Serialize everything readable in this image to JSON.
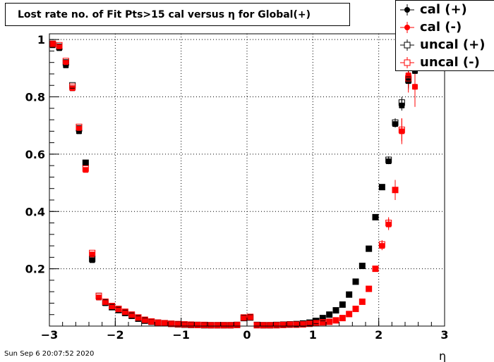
{
  "title": "Lost rate no. of Fit Pts>15 cal versus η for Global(+)",
  "timestamp": "Sun Sep  6 20:07:52 2020",
  "chart_data": {
    "type": "scatter",
    "title": "Lost rate no. of Fit Pts>15 cal versus η for Global(+)",
    "xlabel": "η",
    "ylabel": "",
    "xlim": [
      -3,
      3
    ],
    "ylim": [
      0,
      1.02
    ],
    "x_ticks": [
      -3,
      -2,
      -1,
      0,
      1,
      2,
      3
    ],
    "x_tick_labels": [
      "−3",
      "−2",
      "−1",
      "0",
      "1",
      "2",
      "3"
    ],
    "y_ticks": [
      0.2,
      0.4,
      0.6,
      0.8,
      1
    ],
    "y_tick_labels": [
      "0.2",
      "0.4",
      "0.6",
      "0.8",
      "1"
    ],
    "grid": true,
    "legend_position": "top-right",
    "series": [
      {
        "name": "cal (+)",
        "color": "#000000",
        "marker": "filled-circle",
        "x": [
          -2.95,
          -2.85,
          -2.75,
          -2.65,
          -2.55,
          -2.45,
          -2.35,
          -2.25,
          -2.15,
          -2.05,
          -1.95,
          -1.85,
          -1.75,
          -1.65,
          -1.55,
          -1.45,
          -1.35,
          -1.25,
          -1.15,
          -1.05,
          -0.95,
          -0.85,
          -0.75,
          -0.65,
          -0.55,
          -0.45,
          -0.35,
          -0.25,
          -0.15,
          -0.05,
          0.05,
          0.15,
          0.25,
          0.35,
          0.45,
          0.55,
          0.65,
          0.75,
          0.85,
          0.95,
          1.05,
          1.15,
          1.25,
          1.35,
          1.45,
          1.55,
          1.65,
          1.75,
          1.85,
          1.95,
          2.05,
          2.15,
          2.25,
          2.35,
          2.45,
          2.55
        ],
        "y": [
          0.98,
          0.97,
          0.91,
          0.83,
          0.68,
          0.57,
          0.23,
          0.1,
          0.08,
          0.065,
          0.055,
          0.045,
          0.035,
          0.025,
          0.018,
          0.014,
          0.011,
          0.009,
          0.007,
          0.006,
          0.005,
          0.004,
          0.004,
          0.003,
          0.003,
          0.003,
          0.003,
          0.003,
          0.004,
          0.028,
          0.03,
          0.004,
          0.003,
          0.003,
          0.004,
          0.005,
          0.006,
          0.007,
          0.009,
          0.012,
          0.018,
          0.028,
          0.04,
          0.055,
          0.075,
          0.11,
          0.155,
          0.21,
          0.27,
          0.38,
          0.485,
          0.575,
          0.705,
          0.77,
          0.855,
          0.89
        ],
        "err": [
          0,
          0,
          0,
          0,
          0,
          0,
          0,
          0,
          0,
          0,
          0,
          0,
          0,
          0,
          0,
          0,
          0,
          0,
          0,
          0,
          0,
          0,
          0,
          0,
          0,
          0,
          0,
          0,
          0,
          0,
          0,
          0,
          0,
          0,
          0,
          0,
          0,
          0,
          0,
          0,
          0,
          0,
          0,
          0,
          0,
          0,
          0,
          0,
          0,
          0,
          0,
          0.01,
          0.012,
          0.018,
          0.02,
          0.03
        ]
      },
      {
        "name": "cal (-)",
        "color": "#ff0000",
        "marker": "filled-circle",
        "x": [
          -2.95,
          -2.85,
          -2.75,
          -2.65,
          -2.55,
          -2.45,
          -2.35,
          -2.25,
          -2.15,
          -2.05,
          -1.95,
          -1.85,
          -1.75,
          -1.65,
          -1.55,
          -1.45,
          -1.35,
          -1.25,
          -1.15,
          -1.05,
          -0.95,
          -0.85,
          -0.75,
          -0.65,
          -0.55,
          -0.45,
          -0.35,
          -0.25,
          -0.15,
          -0.05,
          0.05,
          0.15,
          0.25,
          0.35,
          0.45,
          0.55,
          0.65,
          0.75,
          0.85,
          0.95,
          1.05,
          1.15,
          1.25,
          1.35,
          1.45,
          1.55,
          1.65,
          1.75,
          1.85,
          1.95,
          2.05,
          2.15,
          2.25,
          2.35,
          2.45,
          2.55
        ],
        "y": [
          0.985,
          0.975,
          0.92,
          0.83,
          0.69,
          0.545,
          0.25,
          0.1,
          0.085,
          0.07,
          0.06,
          0.05,
          0.04,
          0.03,
          0.022,
          0.016,
          0.012,
          0.01,
          0.008,
          0.007,
          0.006,
          0.005,
          0.004,
          0.004,
          0.003,
          0.003,
          0.003,
          0.003,
          0.004,
          0.03,
          0.032,
          0.003,
          0.003,
          0.003,
          0.003,
          0.004,
          0.005,
          0.005,
          0.006,
          0.008,
          0.01,
          0.013,
          0.015,
          0.02,
          0.028,
          0.042,
          0.06,
          0.085,
          0.13,
          0.2,
          0.28,
          0.355,
          0.475,
          0.68,
          0.875,
          0.835
        ],
        "err": [
          0,
          0,
          0,
          0,
          0,
          0,
          0,
          0,
          0,
          0,
          0,
          0,
          0,
          0,
          0,
          0,
          0,
          0,
          0,
          0,
          0,
          0,
          0,
          0,
          0,
          0,
          0,
          0,
          0,
          0,
          0,
          0,
          0,
          0,
          0,
          0,
          0,
          0,
          0,
          0,
          0,
          0,
          0,
          0,
          0,
          0,
          0,
          0,
          0,
          0.01,
          0.015,
          0.02,
          0.035,
          0.045,
          0.05,
          0.07
        ]
      },
      {
        "name": "uncal (+)",
        "color": "#000000",
        "marker": "open-square",
        "x": [
          -2.95,
          -2.85,
          -2.75,
          -2.65,
          -2.55,
          -2.45,
          -2.35,
          -2.25,
          -2.15,
          -2.05,
          -1.95,
          -1.85,
          -1.75,
          -1.65,
          -1.55,
          -1.45,
          -1.35,
          -1.25,
          -1.15,
          -1.05,
          -0.95,
          -0.85,
          -0.75,
          -0.65,
          -0.55,
          -0.45,
          -0.35,
          -0.25,
          -0.15,
          -0.05,
          0.05,
          0.15,
          0.25,
          0.35,
          0.45,
          0.55,
          0.65,
          0.75,
          0.85,
          0.95,
          1.05,
          1.15,
          1.25,
          1.35,
          1.45,
          1.55,
          1.65,
          1.75,
          1.85,
          1.95,
          2.05,
          2.15,
          2.25,
          2.35,
          2.45
        ],
        "y": [
          0.985,
          0.975,
          0.92,
          0.84,
          0.69,
          0.57,
          0.235,
          0.105,
          0.082,
          0.066,
          0.056,
          0.046,
          0.036,
          0.026,
          0.019,
          0.015,
          0.012,
          0.01,
          0.008,
          0.006,
          0.005,
          0.004,
          0.004,
          0.003,
          0.003,
          0.003,
          0.003,
          0.003,
          0.004,
          0.028,
          0.03,
          0.004,
          0.003,
          0.003,
          0.004,
          0.005,
          0.006,
          0.007,
          0.009,
          0.012,
          0.018,
          0.028,
          0.04,
          0.055,
          0.075,
          0.11,
          0.155,
          0.21,
          0.27,
          0.38,
          0.485,
          0.58,
          0.71,
          0.78,
          0.86
        ],
        "err": [
          0,
          0,
          0,
          0,
          0,
          0,
          0,
          0,
          0,
          0,
          0,
          0,
          0,
          0,
          0,
          0,
          0,
          0,
          0,
          0,
          0,
          0,
          0,
          0,
          0,
          0,
          0,
          0,
          0,
          0,
          0,
          0,
          0,
          0,
          0,
          0,
          0,
          0,
          0,
          0,
          0,
          0,
          0,
          0,
          0,
          0,
          0,
          0,
          0,
          0,
          0.01,
          0.012,
          0.015,
          0.02,
          0.03
        ]
      },
      {
        "name": "uncal (-)",
        "color": "#ff0000",
        "marker": "open-square",
        "x": [
          -2.95,
          -2.85,
          -2.75,
          -2.65,
          -2.55,
          -2.45,
          -2.35,
          -2.25,
          -2.15,
          -2.05,
          -1.95,
          -1.85,
          -1.75,
          -1.65,
          -1.55,
          -1.45,
          -1.35,
          -1.25,
          -1.15,
          -1.05,
          -0.95,
          -0.85,
          -0.75,
          -0.65,
          -0.55,
          -0.45,
          -0.35,
          -0.25,
          -0.15,
          -0.05,
          0.05,
          0.15,
          0.25,
          0.35,
          0.45,
          0.55,
          0.65,
          0.75,
          0.85,
          0.95,
          1.05,
          1.15,
          1.25,
          1.35,
          1.45,
          1.55,
          1.65,
          1.75,
          1.85,
          1.95,
          2.05,
          2.15,
          2.25,
          2.35,
          2.45
        ],
        "y": [
          0.985,
          0.98,
          0.925,
          0.835,
          0.695,
          0.55,
          0.255,
          0.105,
          0.085,
          0.07,
          0.06,
          0.05,
          0.04,
          0.03,
          0.022,
          0.016,
          0.012,
          0.01,
          0.008,
          0.007,
          0.006,
          0.005,
          0.004,
          0.004,
          0.003,
          0.003,
          0.003,
          0.003,
          0.004,
          0.03,
          0.032,
          0.003,
          0.003,
          0.003,
          0.003,
          0.004,
          0.005,
          0.005,
          0.006,
          0.008,
          0.01,
          0.013,
          0.015,
          0.02,
          0.028,
          0.042,
          0.06,
          0.085,
          0.13,
          0.2,
          0.285,
          0.36,
          0.475,
          0.685,
          0.865
        ],
        "err": [
          0,
          0,
          0,
          0,
          0,
          0,
          0,
          0,
          0,
          0,
          0,
          0,
          0,
          0,
          0,
          0,
          0,
          0,
          0,
          0,
          0,
          0,
          0,
          0,
          0,
          0,
          0,
          0,
          0,
          0,
          0,
          0,
          0,
          0,
          0,
          0,
          0,
          0,
          0,
          0,
          0,
          0,
          0,
          0,
          0,
          0,
          0,
          0,
          0,
          0.01,
          0.015,
          0.02,
          0.03,
          0.04,
          0.05
        ]
      }
    ]
  }
}
